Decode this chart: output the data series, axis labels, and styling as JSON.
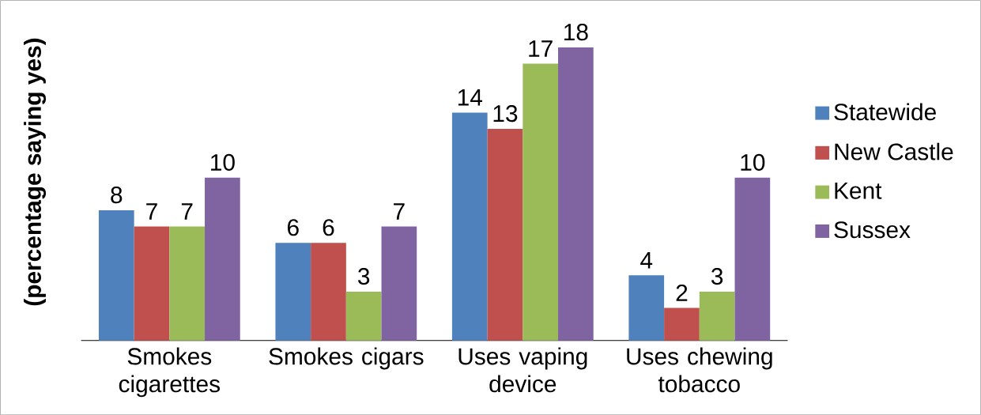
{
  "chart_data": {
    "type": "bar",
    "ylabel": "(percentage saying yes)",
    "categories": [
      "Smokes cigarettes",
      "Smokes cigars",
      "Uses vaping device",
      "Uses chewing tobacco"
    ],
    "series": [
      {
        "name": "Statewide",
        "color": "#4f81bd",
        "values": [
          8,
          6,
          14,
          4
        ]
      },
      {
        "name": "New Castle",
        "color": "#c0504d",
        "values": [
          7,
          6,
          13,
          2
        ]
      },
      {
        "name": "Kent",
        "color": "#9bbb59",
        "values": [
          7,
          3,
          17,
          3
        ]
      },
      {
        "name": "Sussex",
        "color": "#8064a2",
        "values": [
          10,
          7,
          18,
          10
        ]
      }
    ],
    "data_labels": true,
    "legend": "right"
  }
}
